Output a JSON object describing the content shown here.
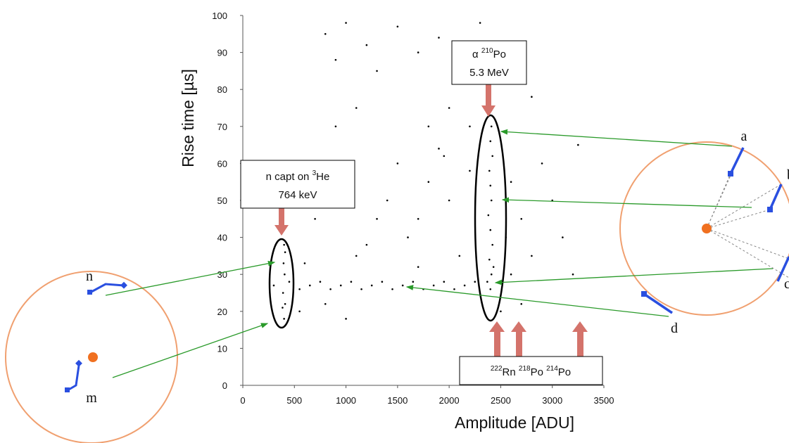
{
  "chart_data": {
    "type": "scatter",
    "x_label": "Amplitude [ADU]",
    "y_label": "Rise time [µs]",
    "xlim": [
      0,
      3500
    ],
    "xticks": [
      0,
      500,
      1000,
      1500,
      2000,
      2500,
      3000,
      3500
    ],
    "ylim": [
      0,
      100
    ],
    "yticks": [
      0,
      10,
      20,
      30,
      40,
      50,
      60,
      70,
      80,
      90,
      100
    ],
    "color": "#000000",
    "x": [
      300,
      450,
      550,
      650,
      750,
      850,
      950,
      1050,
      1150,
      1250,
      1350,
      1450,
      1550,
      1650,
      1750,
      1850,
      1950,
      2050,
      2150,
      2250,
      400,
      410,
      390,
      405,
      395,
      410,
      400,
      385,
      2400,
      2410,
      2390,
      2420,
      2400,
      2380,
      2410,
      2400,
      2390,
      2420,
      2400,
      2410,
      2370,
      2430,
      1600,
      1700,
      1800,
      1900,
      1950,
      2000,
      2100,
      2200,
      2550,
      2600,
      2700,
      2800,
      2900,
      3000,
      2200,
      2000,
      1800,
      1700,
      2600,
      2700,
      2500,
      3100,
      3200,
      3250,
      2800,
      2500,
      1500,
      1400,
      1300,
      1200,
      1100,
      800,
      900,
      1000,
      1200,
      1300,
      1500,
      1700,
      1900,
      2100,
      2300,
      2600,
      900,
      1100,
      800,
      700,
      1000,
      600,
      550,
      800,
      1000
    ],
    "y": [
      27,
      28,
      26,
      27,
      28,
      26,
      27,
      28,
      26,
      27,
      28,
      26,
      27,
      28,
      26,
      27,
      28,
      26,
      27,
      28,
      18,
      22,
      25,
      30,
      33,
      36,
      38,
      21,
      26,
      30,
      34,
      38,
      42,
      46,
      50,
      54,
      58,
      62,
      66,
      70,
      28,
      32,
      40,
      45,
      55,
      64,
      62,
      50,
      35,
      58,
      40,
      55,
      45,
      35,
      60,
      50,
      70,
      75,
      70,
      32,
      30,
      22,
      20,
      40,
      30,
      65,
      78,
      85,
      60,
      50,
      45,
      38,
      35,
      95,
      88,
      98,
      92,
      85,
      97,
      90,
      94,
      87,
      98,
      92,
      70,
      75,
      55,
      45,
      60,
      33,
      20,
      22,
      18
    ],
    "annotations": {
      "alpha": {
        "symbol": "α",
        "mass": "210",
        "element": "Po",
        "energy": "5.3 MeV"
      },
      "neutron": {
        "text": "n capt on",
        "mass": "3",
        "element": "He",
        "energy": "764 keV"
      },
      "radon": [
        {
          "mass": "222",
          "element": "Rn"
        },
        {
          "mass": "218",
          "element": "Po"
        },
        {
          "mass": "214",
          "element": "Po"
        }
      ]
    },
    "track_labels": {
      "a": "a",
      "b": "b",
      "c": "c",
      "d": "d",
      "n": "n",
      "m": "m"
    }
  }
}
